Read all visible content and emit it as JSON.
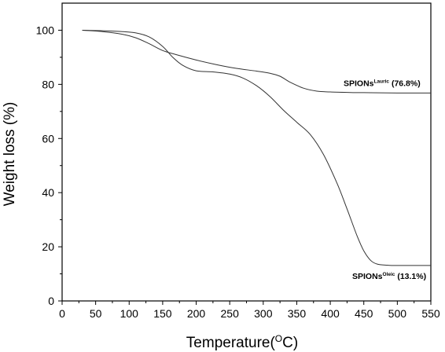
{
  "chart_data": {
    "type": "line",
    "xlabel": "Temperature(",
    "xlabel_unit_sup": "O",
    "xlabel_unit": "C)",
    "ylabel": "Weight loss (%)",
    "xlim": [
      0,
      550
    ],
    "ylim": [
      0,
      110
    ],
    "xticks": [
      0,
      50,
      100,
      150,
      200,
      250,
      300,
      350,
      400,
      450,
      500,
      550
    ],
    "yticks": [
      0,
      20,
      40,
      60,
      80,
      100
    ],
    "grid": false,
    "series": [
      {
        "name": "SPIONs",
        "name_sup": "Lauric",
        "annotation": " (76.8%)",
        "color": "#333333",
        "x": [
          30,
          60,
          90,
          110,
          130,
          150,
          170,
          200,
          230,
          260,
          290,
          310,
          325,
          340,
          360,
          380,
          400,
          430,
          460,
          500,
          550
        ],
        "y": [
          100,
          99.5,
          98.5,
          97.2,
          95,
          92.5,
          91,
          89,
          87.3,
          85.9,
          84.9,
          84.1,
          83,
          80.8,
          78.6,
          77.5,
          77.2,
          77.0,
          76.9,
          76.8,
          76.8
        ]
      },
      {
        "name": "SPIONs",
        "name_sup": "Oleic",
        "annotation": " (13.1%)",
        "color": "#333333",
        "x": [
          30,
          60,
          90,
          110,
          130,
          150,
          165,
          180,
          200,
          225,
          250,
          270,
          290,
          310,
          330,
          350,
          370,
          390,
          410,
          425,
          440,
          450,
          460,
          470,
          485,
          500,
          550
        ],
        "y": [
          100,
          99.8,
          99.5,
          99,
          97.5,
          94,
          90,
          87,
          85,
          84.6,
          83.8,
          82.3,
          79.5,
          75.5,
          70.5,
          66,
          61.5,
          54,
          43.5,
          34,
          24,
          18.5,
          15,
          13.6,
          13.2,
          13.1,
          13.1
        ]
      }
    ]
  }
}
